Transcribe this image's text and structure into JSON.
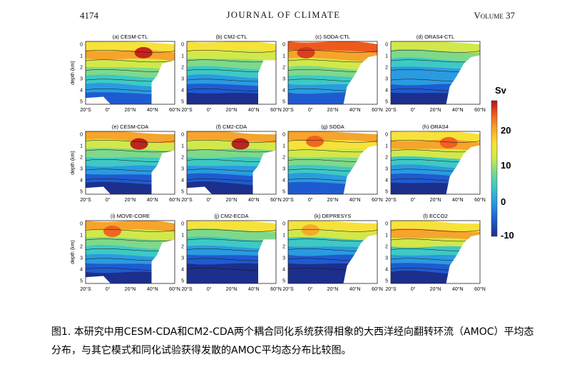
{
  "header": {
    "page_number": "4174",
    "journal": "JOURNAL OF CLIMATE",
    "volume": "Volume 37"
  },
  "figure": {
    "panels": [
      {
        "title": "(a) CESM-CTL"
      },
      {
        "title": "(b) CM2-CTL"
      },
      {
        "title": "(c) SODA-CTL"
      },
      {
        "title": "(d) ORAS4-CTL"
      },
      {
        "title": "(e) CESM-CDA"
      },
      {
        "title": "(f) CM2-CDA"
      },
      {
        "title": "(g) SODA"
      },
      {
        "title": "(h) ORAS4"
      },
      {
        "title": "(i) MOVE-CORE"
      },
      {
        "title": "(j) CM2-ECDA"
      },
      {
        "title": "(k) DEPRESYS"
      },
      {
        "title": "(l) ECCO2"
      }
    ],
    "ylabel": "depth (km)",
    "yticks": [
      "0",
      "1",
      "2",
      "3",
      "4",
      "5"
    ],
    "xticks": [
      "20°S",
      "0°",
      "20°N",
      "40°N",
      "60°N"
    ],
    "colorbar": {
      "unit": "Sv",
      "ticks": [
        "20",
        "10",
        "0",
        "-10"
      ],
      "range": [
        -10,
        30
      ],
      "colors": [
        "#1c2f8c",
        "#1f5bd0",
        "#2a9be0",
        "#3ec9c4",
        "#7fd98a",
        "#d2e84a",
        "#f7e23a",
        "#f6a42b",
        "#ef5a1c",
        "#b3121a"
      ]
    }
  },
  "caption": "图1. 本研究中用CESM-CDA和CM2-CDA两个耦合同化系统获得相象的大西洋经向翻转环流（AMOC）平均态分布，与其它模式和同化试验获得发散的AMOC平均态分布比较图。"
}
